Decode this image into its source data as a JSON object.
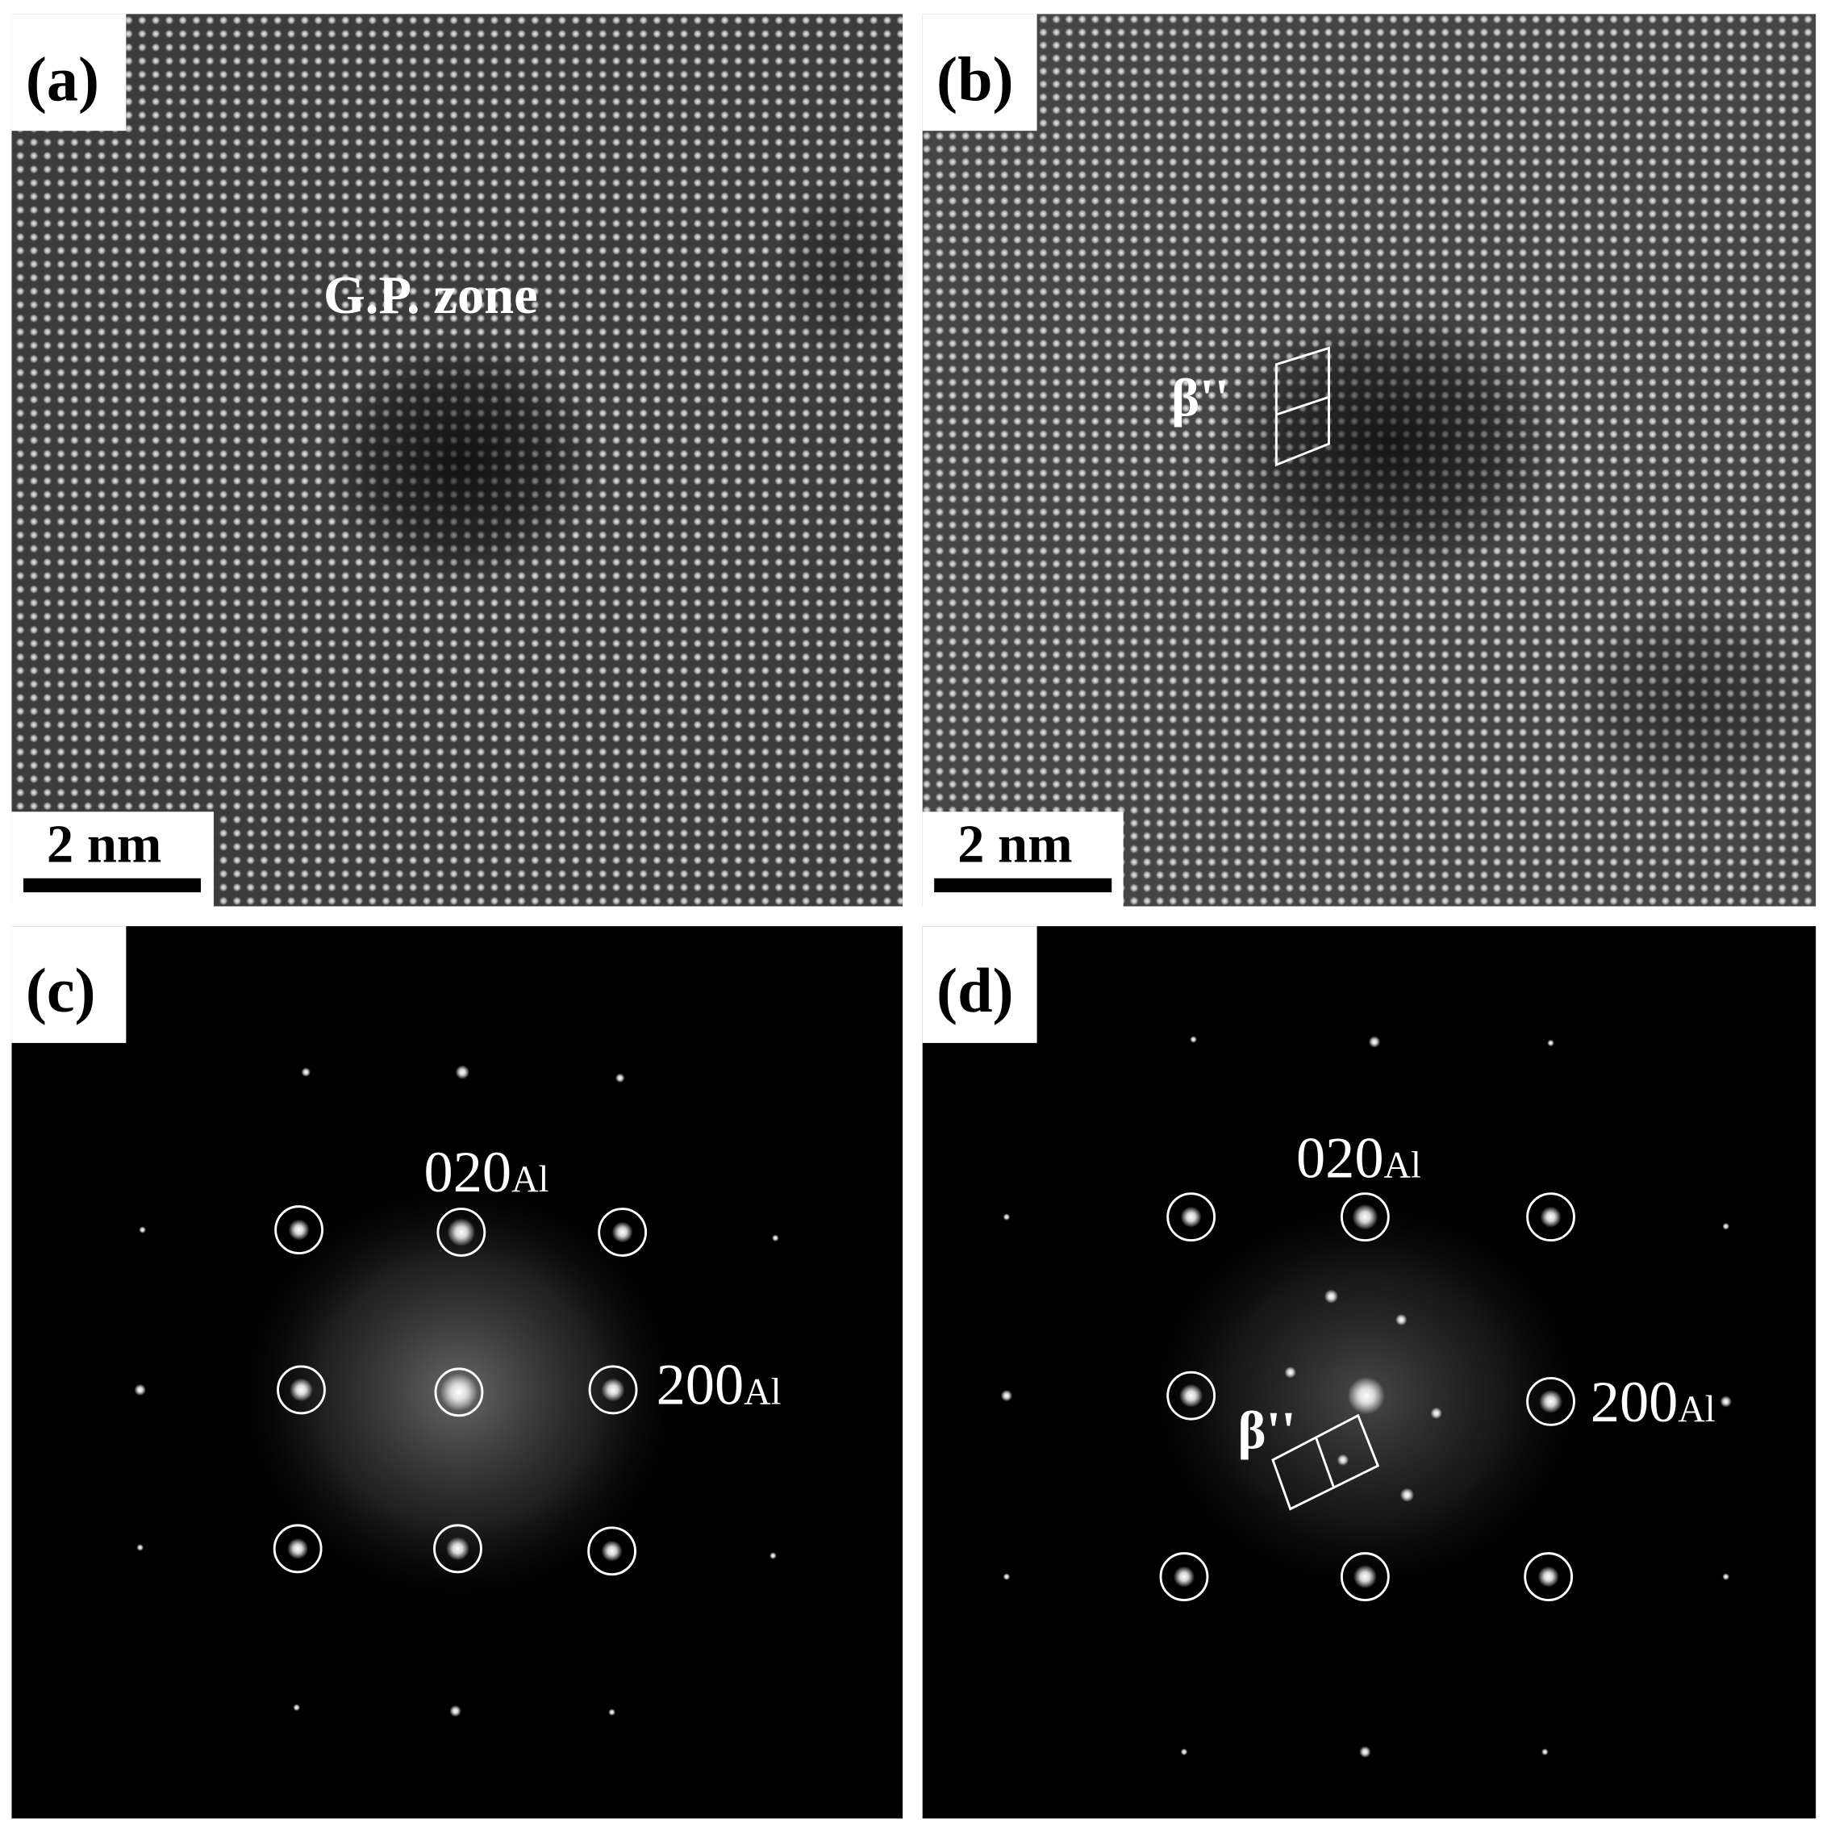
{
  "panels": [
    {
      "label": "(a)",
      "annotation": "G.P. zone",
      "scale_bar": "2 nm"
    },
    {
      "label": "(b)",
      "annotation": "β''",
      "scale_bar": "2 nm"
    },
    {
      "label": "(c)",
      "reflections": [
        {
          "index": "020",
          "phase": "Al"
        },
        {
          "index": "200",
          "phase": "Al"
        }
      ]
    },
    {
      "label": "(d)",
      "annotation": "β''",
      "reflections": [
        {
          "index": "020",
          "phase": "Al"
        },
        {
          "index": "200",
          "phase": "Al"
        }
      ]
    }
  ]
}
